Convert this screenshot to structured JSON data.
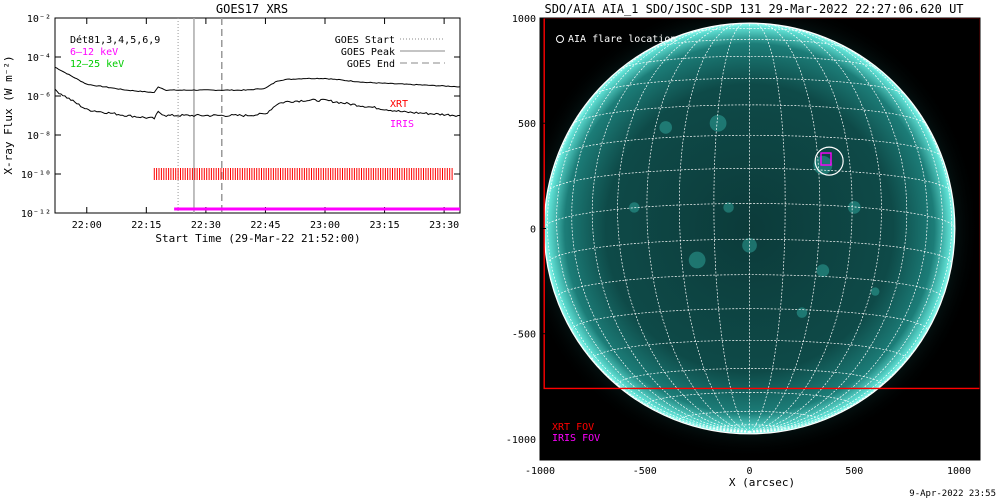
{
  "chart_data": [
    {
      "type": "line",
      "title": "GOES17 XRS",
      "ylabel": "X-ray Flux (W m⁻²)",
      "xlabel": "Start Time (29-Mar-22 21:52:00)",
      "yscale": "log",
      "ylim": [
        1e-12,
        0.01
      ],
      "xlim": [
        "21:52",
        "23:34"
      ],
      "x_ticks": [
        "22:00",
        "22:15",
        "22:30",
        "22:45",
        "23:00",
        "23:15",
        "23:30"
      ],
      "y_ticks": [
        "10⁻¹²",
        "10⁻¹⁰",
        "10⁻⁸",
        "10⁻⁶",
        "10⁻⁴",
        "10⁻²"
      ],
      "legend_left": [
        {
          "label": "Dét81,3,4,5,6,9",
          "color": "#000000"
        },
        {
          "label": "6–12 keV",
          "color": "#ff00ff"
        },
        {
          "label": "12–25 keV",
          "color": "#00cc00"
        }
      ],
      "legend_right": [
        {
          "label": "GOES Start",
          "style": "dotted"
        },
        {
          "label": "GOES Peak",
          "style": "solid"
        },
        {
          "label": "GOES End",
          "style": "dashed"
        }
      ],
      "goes_lines": {
        "start": "22:23",
        "peak": "22:27",
        "end": "22:34"
      },
      "series": [
        {
          "name": "",
          "x": [
            "21:52",
            "22:00",
            "22:10",
            "22:17",
            "22:18",
            "22:20",
            "22:25",
            "22:30",
            "22:40",
            "22:45",
            "22:48",
            "22:50",
            "22:55",
            "23:00",
            "23:10",
            "23:20",
            "23:34"
          ],
          "values": [
            3e-05,
            4e-06,
            2e-06,
            1.5e-06,
            3e-06,
            2e-06,
            2e-06,
            2e-06,
            2e-06,
            2.5e-06,
            6e-06,
            7e-06,
            8e-06,
            8e-06,
            5e-06,
            4e-06,
            3e-06
          ],
          "color": "#000000"
        },
        {
          "name": "",
          "x": [
            "21:52",
            "22:00",
            "22:10",
            "22:17",
            "22:18",
            "22:20",
            "22:25",
            "22:30",
            "22:40",
            "22:45",
            "22:48",
            "22:50",
            "22:55",
            "23:00",
            "23:10",
            "23:20",
            "23:34"
          ],
          "values": [
            2e-06,
            2e-07,
            1e-07,
            7e-08,
            1.5e-07,
            1e-07,
            1e-07,
            1e-07,
            1e-07,
            1.2e-07,
            4e-07,
            5e-07,
            6e-07,
            6e-07,
            3e-07,
            1.5e-07,
            1e-07
          ],
          "color": "#000000"
        }
      ],
      "xrt": {
        "label": "XRT",
        "color": "#ff0000",
        "from": "22:17",
        "to": "23:32",
        "level": 1e-10
      },
      "iris": {
        "label": "IRIS",
        "color": "#ff00ff",
        "from": "22:22",
        "to": "23:34",
        "level": 1e-12
      }
    },
    {
      "type": "image",
      "title": "SDO/AIA AIA_1 SDO/JSOC-SDP 131 29-Mar-2022 22:27:06.620 UT",
      "xlabel": "X (arcsec)",
      "xlim": [
        -1000,
        1100
      ],
      "ylim": [
        -1100,
        1000
      ],
      "x_ticks": [
        -1000,
        -500,
        0,
        500,
        1000
      ],
      "y_ticks": [
        -1000,
        -500,
        0,
        500,
        1000
      ],
      "solar_radius_arcsec": 980,
      "flare_location": {
        "label": "AIA flare location",
        "x": 380,
        "y": 320
      },
      "xrt_fov": {
        "label": "XRT FOV",
        "color": "#ff0000",
        "x0": -980,
        "x1": 1100,
        "y0": -760,
        "y1": 1000
      },
      "iris_fov": {
        "label": "IRIS FOV",
        "color": "#ff00ff",
        "x": 365,
        "y": 330
      },
      "footer": "9-Apr-2022 23:55"
    }
  ]
}
